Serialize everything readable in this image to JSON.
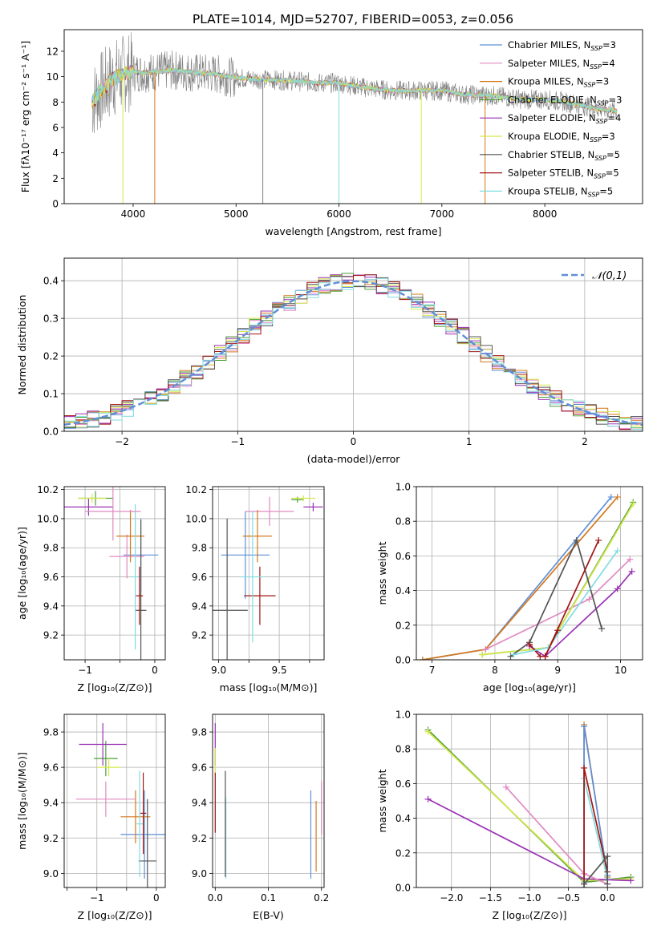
{
  "title": "PLATE=1014, MJD=52707, FIBERID=0053, z=0.056",
  "series_colors": {
    "chabrier_miles": "#5f8fd8",
    "salpeter_miles": "#e08ac2",
    "kroupa_miles": "#d4781c",
    "chabrier_elodie": "#9a32b4",
    "salpeter_elodie": "#8c3cab",
    "kroupa_elodie": "#d6e84a",
    "chabrier_stelib": "#555555",
    "salpeter_stelib": "#a01414",
    "kroupa_stelib": "#80dce0",
    "spectrum": "#808080",
    "normal": "#5f8fd8",
    "green": "#4f9e3a"
  },
  "chart_data": [
    {
      "type": "line",
      "id": "spectrum",
      "xlabel": "wavelength [Angstrom, rest frame]",
      "ylabel": "Flux [f_λ10^-17 erg cm^-2 s^-1 A^-1]",
      "xlim": [
        3330,
        8950
      ],
      "ylim": [
        0,
        13.7
      ],
      "xticks": [
        4000,
        5000,
        6000,
        7000,
        8000
      ],
      "yticks": [
        0,
        2,
        4,
        6,
        8,
        10,
        12
      ],
      "legend": [
        {
          "label": "Chabrier MILES, N_SSP=3",
          "color": "#5f8fd8"
        },
        {
          "label": "Salpeter MILES, N_SSP=4",
          "color": "#e08ac2"
        },
        {
          "label": "Kroupa MILES, N_SSP=3",
          "color": "#d4781c"
        },
        {
          "label": "Chabrier ELODIE, N_SSP=3",
          "color": "#4f9e3a"
        },
        {
          "label": "Salpeter ELODIE, N_SSP=4",
          "color": "#9a32b4"
        },
        {
          "label": "Kroupa ELODIE, N_SSP=3",
          "color": "#d6e84a"
        },
        {
          "label": "Chabrier STELIB, N_SSP=5",
          "color": "#555555"
        },
        {
          "label": "Salpeter STELIB, N_SSP=5",
          "color": "#a01414"
        },
        {
          "label": "Kroupa STELIB, N_SSP=5",
          "color": "#80dce0"
        }
      ],
      "model_envelope": {
        "x": [
          3600,
          3700,
          3800,
          3900,
          4000,
          4100,
          4200,
          4400,
          4600,
          4800,
          5000,
          5200,
          5500,
          5800,
          6000,
          6200,
          6500,
          6800,
          7000,
          7200,
          7500,
          7800,
          8000,
          8200,
          8500,
          8700
        ],
        "y": [
          8.0,
          9.0,
          9.8,
          10.2,
          10.4,
          10.3,
          10.4,
          10.5,
          10.3,
          10.2,
          9.9,
          9.8,
          9.7,
          9.5,
          9.5,
          9.2,
          8.9,
          8.9,
          8.9,
          8.6,
          8.5,
          8.2,
          8.2,
          8.0,
          7.5,
          7.3
        ]
      }
    },
    {
      "type": "step",
      "id": "residuals",
      "xlabel": "(data-model)/error",
      "ylabel": "Normed distribution",
      "xlim": [
        -2.5,
        2.5
      ],
      "ylim": [
        0,
        0.46
      ],
      "xticks": [
        -2,
        -1,
        0,
        1,
        2
      ],
      "yticks": [
        0.0,
        0.1,
        0.2,
        0.3,
        0.4
      ],
      "legend": [
        {
          "label": "𝒩(0,1)",
          "style": "dashed"
        }
      ]
    },
    {
      "type": "errorbar",
      "id": "age_vs_Z",
      "xlabel": "Z [log10(Z/Z⊙)]",
      "ylabel": "age  [log10(age/yr)]",
      "xlim": [
        -1.3,
        0.15
      ],
      "ylim": [
        9.03,
        10.22
      ],
      "xticks": [
        -1,
        -0.5,
        0
      ],
      "xtick_labels": [
        "−1",
        "",
        "0"
      ],
      "yticks": [
        9.2,
        9.4,
        9.6,
        9.8,
        10.0,
        10.2
      ],
      "points": [
        {
          "x": -0.2,
          "xerr": 0.25,
          "y": 9.75,
          "yerr": 0.25,
          "c": "chabrier_miles"
        },
        {
          "x": -0.4,
          "xerr": 0.25,
          "y": 9.74,
          "yerr": 0.15,
          "c": "salpeter_miles"
        },
        {
          "x": -0.35,
          "xerr": 0.2,
          "y": 9.88,
          "yerr": 0.18,
          "c": "kroupa_miles"
        },
        {
          "x": -0.85,
          "xerr": 0.25,
          "y": 10.14,
          "yerr": 0.05,
          "c": "green"
        },
        {
          "x": -0.95,
          "xerr": 0.35,
          "y": 10.08,
          "yerr": 0.06,
          "c": "chabrier_elodie"
        },
        {
          "x": -0.9,
          "xerr": 0.2,
          "y": 10.14,
          "yerr": 0.03,
          "c": "kroupa_elodie"
        },
        {
          "x": -0.2,
          "xerr": 0.08,
          "y": 9.37,
          "yerr": 0.62,
          "c": "chabrier_stelib"
        },
        {
          "x": -0.22,
          "xerr": 0.05,
          "y": 9.47,
          "yerr": 0.2,
          "c": "salpeter_stelib"
        },
        {
          "x": -0.28,
          "xerr": 0.05,
          "y": 9.6,
          "yerr": 0.5,
          "c": "kroupa_stelib"
        },
        {
          "x": -0.6,
          "xerr": 0.4,
          "y": 10.05,
          "yerr": 0.2,
          "c": "salpeter_miles"
        }
      ]
    },
    {
      "type": "errorbar",
      "id": "age_vs_mass",
      "xlabel": "mass [log10(M/M⊙)]",
      "ylabel": "",
      "xlim": [
        8.95,
        9.87
      ],
      "ylim": [
        9.03,
        10.22
      ],
      "xticks": [
        9.0,
        9.25,
        9.5,
        9.75
      ],
      "xtick_labels": [
        "9.0",
        "",
        "9.5",
        ""
      ],
      "yticks": [
        9.2,
        9.4,
        9.6,
        9.8,
        10.0,
        10.2
      ],
      "points": [
        {
          "x": 9.22,
          "xerr": 0.2,
          "y": 9.75,
          "yerr": 0.3,
          "c": "chabrier_miles"
        },
        {
          "x": 9.42,
          "xerr": 0.2,
          "y": 10.05,
          "yerr": 0.1,
          "c": "salpeter_miles"
        },
        {
          "x": 9.32,
          "xerr": 0.12,
          "y": 9.88,
          "yerr": 0.18,
          "c": "kroupa_miles"
        },
        {
          "x": 9.65,
          "xerr": 0.05,
          "y": 10.13,
          "yerr": 0.02,
          "c": "green"
        },
        {
          "x": 9.78,
          "xerr": 0.08,
          "y": 10.08,
          "yerr": 0.03,
          "c": "chabrier_elodie"
        },
        {
          "x": 9.7,
          "xerr": 0.1,
          "y": 10.14,
          "yerr": 0.02,
          "c": "kroupa_elodie"
        },
        {
          "x": 9.07,
          "xerr": 0.17,
          "y": 9.37,
          "yerr": 0.63,
          "c": "chabrier_stelib"
        },
        {
          "x": 9.34,
          "xerr": 0.13,
          "y": 9.47,
          "yerr": 0.2,
          "c": "salpeter_stelib"
        },
        {
          "x": 9.28,
          "xerr": 0.1,
          "y": 9.6,
          "yerr": 0.45,
          "c": "kroupa_stelib"
        }
      ]
    },
    {
      "type": "line",
      "id": "massweight_vs_age",
      "xlabel": "age  [log10(age/yr)]",
      "ylabel": "mass weight",
      "xlim": [
        6.75,
        10.35
      ],
      "ylim": [
        0,
        1.0
      ],
      "xticks": [
        7,
        8,
        9,
        10
      ],
      "yticks": [
        0.0,
        0.2,
        0.4,
        0.6,
        0.8,
        1.0
      ],
      "series": [
        {
          "c": "chabrier_miles",
          "x": [
            6.85,
            7.85,
            9.85
          ],
          "y": [
            0.0,
            0.06,
            0.94
          ]
        },
        {
          "c": "kroupa_miles",
          "x": [
            6.85,
            7.85,
            9.95
          ],
          "y": [
            0.0,
            0.06,
            0.94
          ]
        },
        {
          "c": "salpeter_miles",
          "x": [
            7.85,
            9.5,
            10.15
          ],
          "y": [
            0.06,
            0.35,
            0.58
          ]
        },
        {
          "c": "green",
          "x": [
            7.8,
            8.85,
            10.2
          ],
          "y": [
            0.03,
            0.07,
            0.91
          ]
        },
        {
          "c": "kroupa_elodie",
          "x": [
            7.8,
            8.85,
            10.2
          ],
          "y": [
            0.03,
            0.07,
            0.9
          ]
        },
        {
          "c": "chabrier_elodie",
          "x": [
            8.55,
            8.8,
            9.95,
            10.18
          ],
          "y": [
            0.08,
            0.02,
            0.41,
            0.51
          ]
        },
        {
          "c": "chabrier_stelib",
          "x": [
            8.25,
            8.55,
            9.3,
            9.7
          ],
          "y": [
            0.02,
            0.1,
            0.69,
            0.18
          ]
        },
        {
          "c": "salpeter_stelib",
          "x": [
            8.55,
            8.72,
            8.8,
            9.65
          ],
          "y": [
            0.09,
            0.02,
            0.02,
            0.69
          ]
        },
        {
          "c": "kroupa_stelib",
          "x": [
            8.3,
            8.85,
            9.95
          ],
          "y": [
            0.03,
            0.07,
            0.63
          ]
        },
        {
          "c": "salpeter_stelib",
          "x": [
            8.8,
            9.0
          ],
          "y": [
            0.02,
            0.17
          ]
        }
      ]
    },
    {
      "type": "errorbar",
      "id": "mass_vs_Z",
      "xlabel": "Z [log10(Z/Z⊙)]",
      "ylabel": "mass [log10(M/M⊙)]",
      "xlim": [
        -1.55,
        0.15
      ],
      "ylim": [
        8.92,
        9.9
      ],
      "xticks": [
        -1.5,
        -1,
        -0.5,
        0
      ],
      "xtick_labels": [
        "",
        "−1",
        "",
        "0"
      ],
      "yticks": [
        9.0,
        9.2,
        9.4,
        9.6,
        9.8
      ],
      "points": [
        {
          "x": -0.2,
          "xerr": 0.4,
          "y": 9.22,
          "yerr": 0.25,
          "c": "chabrier_miles"
        },
        {
          "x": -0.85,
          "xerr": 0.5,
          "y": 9.42,
          "yerr": 0.1,
          "c": "salpeter_miles"
        },
        {
          "x": -0.35,
          "xerr": 0.25,
          "y": 9.32,
          "yerr": 0.15,
          "c": "kroupa_miles"
        },
        {
          "x": -0.85,
          "xerr": 0.2,
          "y": 9.65,
          "yerr": 0.1,
          "c": "green"
        },
        {
          "x": -0.9,
          "xerr": 0.4,
          "y": 9.73,
          "yerr": 0.12,
          "c": "chabrier_elodie"
        },
        {
          "x": -0.8,
          "xerr": 0.2,
          "y": 9.6,
          "yerr": 0.05,
          "c": "kroupa_elodie"
        },
        {
          "x": -0.15,
          "xerr": 0.15,
          "y": 9.07,
          "yerr": 0.35,
          "c": "chabrier_stelib"
        },
        {
          "x": -0.22,
          "xerr": 0.05,
          "y": 9.34,
          "yerr": 0.23,
          "c": "salpeter_stelib"
        },
        {
          "x": -0.28,
          "xerr": 0.05,
          "y": 9.28,
          "yerr": 0.3,
          "c": "kroupa_stelib"
        }
      ]
    },
    {
      "type": "errorbar",
      "id": "mass_vs_ebv",
      "xlabel": "E(B-V)",
      "ylabel": "",
      "xlim": [
        -0.005,
        0.205
      ],
      "ylim": [
        8.92,
        9.9
      ],
      "xticks": [
        0.0,
        0.1,
        0.2
      ],
      "yticks": [
        9.0,
        9.2,
        9.4,
        9.6,
        9.8
      ],
      "points": [
        {
          "x": 0.18,
          "xerr": 0.0,
          "y": 9.22,
          "yerr": 0.25,
          "c": "chabrier_miles"
        },
        {
          "x": 0.2,
          "xerr": 0.0,
          "y": 9.37,
          "yerr": 0.15,
          "c": "salpeter_miles"
        },
        {
          "x": 0.19,
          "xerr": 0.0,
          "y": 9.21,
          "yerr": 0.2,
          "c": "kroupa_miles"
        },
        {
          "x": 0.0,
          "xerr": 0.0,
          "y": 9.73,
          "yerr": 0.12,
          "c": "chabrier_elodie"
        },
        {
          "x": 0.0,
          "xerr": 0.0,
          "y": 9.63,
          "yerr": 0.08,
          "c": "kroupa_elodie"
        },
        {
          "x": 0.0,
          "xerr": 0.0,
          "y": 9.4,
          "yerr": 0.17,
          "c": "salpeter_stelib"
        },
        {
          "x": 0.02,
          "xerr": 0.0,
          "y": 9.2,
          "yerr": 0.23,
          "c": "kroupa_stelib"
        },
        {
          "x": 0.019,
          "xerr": 0.0,
          "y": 9.28,
          "yerr": 0.3,
          "c": "chabrier_stelib"
        }
      ]
    },
    {
      "type": "line",
      "id": "massweight_vs_Z",
      "xlabel": "Z [log10(Z/Z⊙)]",
      "ylabel": "mass weight",
      "xlim": [
        -2.45,
        0.45
      ],
      "ylim": [
        0,
        1.0
      ],
      "xticks": [
        -2.0,
        -1.5,
        -1.0,
        -0.5,
        0.0
      ],
      "yticks": [
        0.0,
        0.2,
        0.4,
        0.6,
        0.8,
        1.0
      ],
      "series": [
        {
          "c": "green",
          "x": [
            -2.3,
            -0.3,
            0.3
          ],
          "y": [
            0.91,
            0.03,
            0.06
          ]
        },
        {
          "c": "kroupa_elodie",
          "x": [
            -2.3,
            -0.3,
            0.3
          ],
          "y": [
            0.9,
            0.04,
            0.05
          ]
        },
        {
          "c": "chabrier_elodie",
          "x": [
            -2.3,
            -0.3,
            0.3
          ],
          "y": [
            0.51,
            0.05,
            0.04
          ]
        },
        {
          "c": "salpeter_miles",
          "x": [
            -1.3,
            -0.3,
            0.0
          ],
          "y": [
            0.58,
            0.08,
            0.02
          ]
        },
        {
          "c": "kroupa_miles",
          "x": [
            -0.3,
            -0.3,
            0.0
          ],
          "y": [
            0.0,
            0.94,
            0.06
          ]
        },
        {
          "c": "chabrier_miles",
          "x": [
            -0.3,
            -0.3,
            0.0
          ],
          "y": [
            0.0,
            0.93,
            0.07
          ]
        },
        {
          "c": "kroupa_stelib",
          "x": [
            -0.3,
            -0.3,
            0.0
          ],
          "y": [
            0.03,
            0.63,
            0.05
          ]
        },
        {
          "c": "salpeter_stelib",
          "x": [
            -0.3,
            -0.3,
            0.0
          ],
          "y": [
            0.02,
            0.69,
            0.09
          ]
        },
        {
          "c": "chabrier_stelib",
          "x": [
            -0.3,
            0.0,
            0.0
          ],
          "y": [
            0.02,
            0.18,
            0.02
          ]
        }
      ]
    }
  ]
}
